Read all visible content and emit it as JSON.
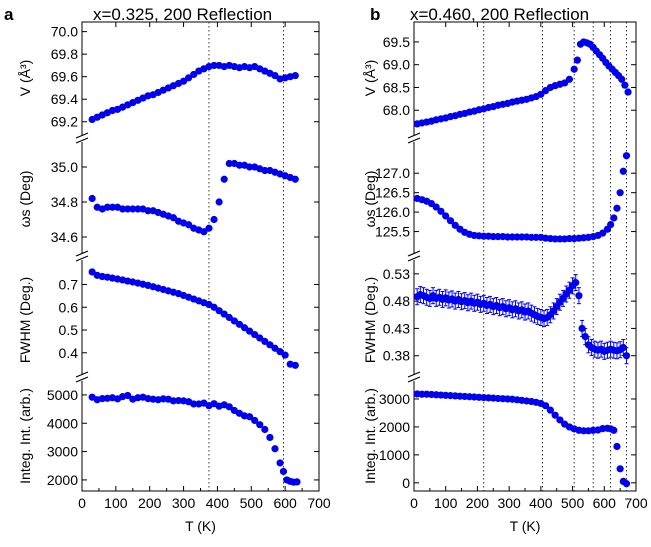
{
  "chart_data": [
    {
      "type": "scatter",
      "panel_letter": "a",
      "title": "x=0.325, 200 Reflection",
      "xlabel": "T (K)",
      "xlim": [
        0,
        700
      ],
      "xticks": [
        0,
        100,
        200,
        300,
        400,
        500,
        600,
        700
      ],
      "vlines": [
        375,
        595
      ],
      "marker_color": "#0000ee",
      "subplots": [
        {
          "ylabel": "V (Å³)",
          "ylim": [
            69.1,
            70.05
          ],
          "yticks": [
            69.2,
            69.4,
            69.6,
            69.8,
            70.0
          ],
          "ytick_labels": [
            "69.2",
            "69.4",
            "69.6",
            "69.8",
            "70.0"
          ],
          "x": [
            30,
            45,
            60,
            75,
            90,
            105,
            120,
            135,
            150,
            165,
            180,
            195,
            210,
            225,
            240,
            255,
            270,
            285,
            300,
            315,
            330,
            345,
            360,
            375,
            390,
            405,
            420,
            435,
            450,
            465,
            480,
            495,
            510,
            525,
            540,
            555,
            570,
            585,
            600,
            615,
            630
          ],
          "y": [
            69.22,
            69.24,
            69.26,
            69.28,
            69.3,
            69.31,
            69.33,
            69.35,
            69.37,
            69.39,
            69.41,
            69.43,
            69.44,
            69.46,
            69.48,
            69.5,
            69.52,
            69.54,
            69.56,
            69.59,
            69.62,
            69.65,
            69.67,
            69.69,
            69.7,
            69.7,
            69.69,
            69.7,
            69.69,
            69.68,
            69.69,
            69.68,
            69.69,
            69.67,
            69.65,
            69.63,
            69.61,
            69.58,
            69.59,
            69.6,
            69.61
          ]
        },
        {
          "ylabel": "ωs (Deg)",
          "ylim": [
            34.52,
            35.12
          ],
          "yticks": [
            34.6,
            34.8,
            35.0
          ],
          "ytick_labels": [
            "34.6",
            "34.8",
            "35.0"
          ],
          "x": [
            30,
            45,
            60,
            75,
            90,
            105,
            120,
            135,
            150,
            165,
            180,
            195,
            210,
            225,
            240,
            255,
            270,
            285,
            300,
            315,
            330,
            345,
            360,
            375,
            390,
            405,
            420,
            435,
            450,
            465,
            480,
            495,
            510,
            525,
            540,
            555,
            570,
            585,
            600,
            615,
            630
          ],
          "y": [
            34.82,
            34.77,
            34.76,
            34.77,
            34.77,
            34.77,
            34.76,
            34.76,
            34.76,
            34.76,
            34.76,
            34.75,
            34.75,
            34.74,
            34.73,
            34.72,
            34.71,
            34.69,
            34.68,
            34.67,
            34.65,
            34.64,
            34.63,
            34.65,
            34.7,
            34.8,
            34.93,
            35.02,
            35.02,
            35.01,
            35.01,
            35.0,
            35.0,
            34.99,
            34.98,
            34.98,
            34.97,
            34.96,
            34.95,
            34.94,
            34.93
          ]
        },
        {
          "ylabel": "FWHM (Deg.)",
          "ylim": [
            0.32,
            0.79
          ],
          "yticks": [
            0.4,
            0.5,
            0.6,
            0.7
          ],
          "ytick_labels": [
            "0.4",
            "0.5",
            "0.6",
            "0.7"
          ],
          "x": [
            30,
            45,
            60,
            75,
            90,
            105,
            120,
            135,
            150,
            165,
            180,
            195,
            210,
            225,
            240,
            255,
            270,
            285,
            300,
            315,
            330,
            345,
            360,
            375,
            390,
            405,
            420,
            435,
            450,
            465,
            480,
            495,
            510,
            525,
            540,
            555,
            570,
            585,
            600,
            615,
            630
          ],
          "y": [
            0.755,
            0.74,
            0.735,
            0.732,
            0.728,
            0.724,
            0.72,
            0.715,
            0.711,
            0.706,
            0.701,
            0.696,
            0.69,
            0.684,
            0.678,
            0.672,
            0.666,
            0.66,
            0.652,
            0.644,
            0.636,
            0.628,
            0.62,
            0.612,
            0.6,
            0.585,
            0.57,
            0.555,
            0.54,
            0.525,
            0.51,
            0.495,
            0.48,
            0.465,
            0.45,
            0.435,
            0.42,
            0.405,
            0.39,
            0.35,
            0.345
          ]
        },
        {
          "ylabel": "Integ. Int. (arb.)",
          "ylim": [
            1750,
            5350
          ],
          "yticks": [
            2000,
            3000,
            4000,
            5000
          ],
          "ytick_labels": [
            "2000",
            "3000",
            "4000",
            "5000"
          ],
          "x": [
            30,
            45,
            60,
            75,
            90,
            105,
            120,
            135,
            150,
            165,
            180,
            195,
            210,
            225,
            240,
            255,
            270,
            285,
            300,
            315,
            330,
            345,
            360,
            375,
            390,
            405,
            420,
            435,
            450,
            465,
            480,
            495,
            510,
            525,
            540,
            555,
            570,
            585,
            595,
            605,
            615,
            625,
            635
          ],
          "y": [
            4920,
            4830,
            4870,
            4880,
            4900,
            4860,
            4940,
            4980,
            4850,
            4900,
            4920,
            4870,
            4850,
            4830,
            4860,
            4850,
            4790,
            4800,
            4790,
            4760,
            4680,
            4680,
            4710,
            4620,
            4690,
            4600,
            4650,
            4580,
            4450,
            4350,
            4260,
            4230,
            4100,
            3950,
            3780,
            3500,
            3100,
            2600,
            2300,
            2000,
            1950,
            1920,
            1930
          ]
        }
      ]
    },
    {
      "type": "scatter",
      "panel_letter": "b",
      "title": "x=0.460, 200 Reflection",
      "xlabel": "T (K)",
      "xlim": [
        0,
        700
      ],
      "xticks": [
        0,
        100,
        200,
        300,
        400,
        500,
        600,
        700
      ],
      "vlines": [
        220,
        405,
        505,
        565,
        620,
        670
      ],
      "marker_color": "#0000ee",
      "subplots": [
        {
          "ylabel": "V (Å³)",
          "ylim": [
            67.5,
            69.85
          ],
          "yticks": [
            68.0,
            68.5,
            69.0,
            69.5
          ],
          "ytick_labels": [
            "68.0",
            "68.5",
            "69.0",
            "69.5"
          ],
          "x": [
            10,
            25,
            40,
            55,
            70,
            85,
            100,
            115,
            130,
            145,
            160,
            175,
            190,
            205,
            220,
            235,
            250,
            265,
            280,
            295,
            310,
            325,
            340,
            355,
            370,
            385,
            400,
            415,
            430,
            445,
            460,
            475,
            490,
            505,
            515,
            525,
            535,
            545,
            555,
            565,
            575,
            585,
            595,
            605,
            615,
            625,
            635,
            645,
            655,
            665,
            675
          ],
          "y": [
            67.7,
            67.72,
            67.74,
            67.76,
            67.79,
            67.81,
            67.83,
            67.86,
            67.88,
            67.91,
            67.93,
            67.96,
            67.98,
            68.01,
            68.03,
            68.06,
            68.08,
            68.11,
            68.13,
            68.15,
            68.18,
            68.2,
            68.22,
            68.24,
            68.27,
            68.3,
            68.35,
            68.43,
            68.5,
            68.54,
            68.57,
            68.6,
            68.68,
            68.9,
            69.1,
            69.45,
            69.5,
            69.48,
            69.45,
            69.38,
            69.3,
            69.22,
            69.14,
            69.05,
            68.97,
            68.9,
            68.83,
            68.76,
            68.68,
            68.55,
            68.4
          ]
        },
        {
          "ylabel": "ωs (Deg)",
          "ylim": [
            125.0,
            127.7
          ],
          "yticks": [
            125.5,
            126.0,
            126.5,
            127.0
          ],
          "ytick_labels": [
            "125.5",
            "126.0",
            "126.5",
            "127.0"
          ],
          "x": [
            10,
            25,
            40,
            55,
            70,
            85,
            100,
            115,
            130,
            145,
            160,
            175,
            190,
            205,
            220,
            235,
            250,
            265,
            280,
            295,
            310,
            325,
            340,
            355,
            370,
            385,
            400,
            415,
            430,
            445,
            460,
            475,
            490,
            505,
            520,
            535,
            550,
            565,
            580,
            595,
            610,
            620,
            630,
            640,
            650,
            660,
            670
          ],
          "y": [
            126.35,
            126.32,
            126.28,
            126.22,
            126.13,
            126.02,
            125.9,
            125.78,
            125.66,
            125.56,
            125.48,
            125.43,
            125.4,
            125.39,
            125.38,
            125.38,
            125.37,
            125.37,
            125.37,
            125.36,
            125.36,
            125.36,
            125.36,
            125.36,
            125.35,
            125.35,
            125.35,
            125.33,
            125.32,
            125.31,
            125.31,
            125.31,
            125.32,
            125.32,
            125.33,
            125.34,
            125.35,
            125.37,
            125.4,
            125.46,
            125.56,
            125.68,
            125.85,
            126.1,
            126.5,
            127.05,
            127.45
          ]
        },
        {
          "ylabel": "FWHM (Deg.)",
          "ylim": [
            0.352,
            0.548
          ],
          "yticks": [
            0.38,
            0.43,
            0.48,
            0.53
          ],
          "ytick_labels": [
            "0.38",
            "0.43",
            "0.48",
            "0.53"
          ],
          "x": [
            10,
            20,
            30,
            40,
            50,
            60,
            70,
            80,
            90,
            100,
            110,
            120,
            130,
            140,
            150,
            160,
            170,
            180,
            190,
            200,
            210,
            220,
            230,
            240,
            250,
            260,
            270,
            280,
            290,
            300,
            310,
            320,
            330,
            340,
            350,
            360,
            370,
            380,
            390,
            400,
            410,
            420,
            430,
            440,
            450,
            460,
            470,
            480,
            490,
            500,
            510,
            520,
            530,
            540,
            550,
            560,
            570,
            580,
            590,
            600,
            610,
            620,
            630,
            640,
            650,
            660,
            670
          ],
          "y": [
            0.488,
            0.492,
            0.49,
            0.487,
            0.485,
            0.49,
            0.485,
            0.487,
            0.483,
            0.486,
            0.482,
            0.484,
            0.48,
            0.483,
            0.479,
            0.481,
            0.477,
            0.48,
            0.476,
            0.478,
            0.474,
            0.476,
            0.472,
            0.474,
            0.47,
            0.472,
            0.468,
            0.47,
            0.466,
            0.468,
            0.464,
            0.466,
            0.462,
            0.464,
            0.46,
            0.462,
            0.458,
            0.455,
            0.452,
            0.45,
            0.448,
            0.45,
            0.455,
            0.462,
            0.47,
            0.478,
            0.485,
            0.493,
            0.5,
            0.508,
            0.514,
            0.49,
            0.43,
            0.415,
            0.4,
            0.395,
            0.392,
            0.39,
            0.392,
            0.388,
            0.39,
            0.392,
            0.39,
            0.389,
            0.391,
            0.395,
            0.38
          ]
        },
        {
          "ylabel": "Integ. Int. (arb.)",
          "ylim": [
            -150,
            3500
          ],
          "yticks": [
            0,
            1000,
            2000,
            3000
          ],
          "ytick_labels": [
            "0",
            "1000",
            "2000",
            "3000"
          ],
          "x": [
            10,
            25,
            40,
            55,
            70,
            85,
            100,
            115,
            130,
            145,
            160,
            175,
            190,
            205,
            220,
            235,
            250,
            265,
            280,
            295,
            310,
            325,
            340,
            355,
            370,
            385,
            400,
            415,
            430,
            445,
            460,
            475,
            490,
            505,
            520,
            535,
            550,
            565,
            580,
            595,
            610,
            620,
            630,
            640,
            650,
            660,
            670
          ],
          "y": [
            3180,
            3170,
            3170,
            3160,
            3150,
            3140,
            3130,
            3120,
            3110,
            3100,
            3090,
            3080,
            3070,
            3060,
            3050,
            3040,
            3030,
            3020,
            3010,
            3000,
            2990,
            2970,
            2950,
            2930,
            2910,
            2880,
            2840,
            2760,
            2600,
            2420,
            2250,
            2100,
            2000,
            1930,
            1880,
            1860,
            1860,
            1880,
            1890,
            1940,
            1950,
            1930,
            1880,
            1300,
            500,
            50,
            -30
          ]
        }
      ]
    }
  ]
}
